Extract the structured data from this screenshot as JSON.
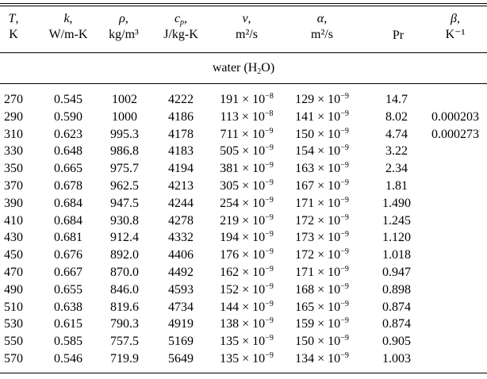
{
  "columns": [
    {
      "symbol": "T",
      "unit": "K"
    },
    {
      "symbol": "k",
      "unit": "W/m-K"
    },
    {
      "symbol": "ρ",
      "unit": "kg/m³"
    },
    {
      "symbol": "c",
      "symbol_sub": "p",
      "unit": "J/kg-K"
    },
    {
      "symbol": "ν",
      "unit": "m²/s"
    },
    {
      "symbol": "α",
      "unit": "m²/s"
    },
    {
      "symbol": "",
      "unit": "Pr"
    },
    {
      "symbol": "β",
      "unit": "K⁻¹"
    }
  ],
  "section": {
    "prefix": "water (H",
    "sub": "2",
    "suffix": "O)"
  },
  "rows": [
    {
      "T": "270",
      "k": "0.545",
      "rho": "1002",
      "cp": "4222",
      "nu_m": "191",
      "nu_e": "−8",
      "a_m": "129",
      "a_e": "−9",
      "Pr": "14.7",
      "beta": ""
    },
    {
      "T": "290",
      "k": "0.590",
      "rho": "1000",
      "cp": "4186",
      "nu_m": "113",
      "nu_e": "−8",
      "a_m": "141",
      "a_e": "−9",
      "Pr": "8.02",
      "beta": "0.000203"
    },
    {
      "T": "310",
      "k": "0.623",
      "rho": "995.3",
      "cp": "4178",
      "nu_m": "711",
      "nu_e": "−9",
      "a_m": "150",
      "a_e": "−9",
      "Pr": "4.74",
      "beta": "0.000273"
    },
    {
      "T": "330",
      "k": "0.648",
      "rho": "986.8",
      "cp": "4183",
      "nu_m": "505",
      "nu_e": "−9",
      "a_m": "154",
      "a_e": "−9",
      "Pr": "3.22",
      "beta": ""
    },
    {
      "T": "350",
      "k": "0.665",
      "rho": "975.7",
      "cp": "4194",
      "nu_m": "381",
      "nu_e": "−9",
      "a_m": "163",
      "a_e": "−9",
      "Pr": "2.34",
      "beta": ""
    },
    {
      "T": "370",
      "k": "0.678",
      "rho": "962.5",
      "cp": "4213",
      "nu_m": "305",
      "nu_e": "−9",
      "a_m": "167",
      "a_e": "−9",
      "Pr": "1.81",
      "beta": ""
    },
    {
      "T": "390",
      "k": "0.684",
      "rho": "947.5",
      "cp": "4244",
      "nu_m": "254",
      "nu_e": "−9",
      "a_m": "171",
      "a_e": "−9",
      "Pr": "1.490",
      "beta": ""
    },
    {
      "T": "410",
      "k": "0.684",
      "rho": "930.8",
      "cp": "4278",
      "nu_m": "219",
      "nu_e": "−9",
      "a_m": "172",
      "a_e": "−9",
      "Pr": "1.245",
      "beta": ""
    },
    {
      "T": "430",
      "k": "0.681",
      "rho": "912.4",
      "cp": "4332",
      "nu_m": "194",
      "nu_e": "−9",
      "a_m": "173",
      "a_e": "−9",
      "Pr": "1.120",
      "beta": ""
    },
    {
      "T": "450",
      "k": "0.676",
      "rho": "892.0",
      "cp": "4406",
      "nu_m": "176",
      "nu_e": "−9",
      "a_m": "172",
      "a_e": "−9",
      "Pr": "1.018",
      "beta": ""
    },
    {
      "T": "470",
      "k": "0.667",
      "rho": "870.0",
      "cp": "4492",
      "nu_m": "162",
      "nu_e": "−9",
      "a_m": "171",
      "a_e": "−9",
      "Pr": "0.947",
      "beta": ""
    },
    {
      "T": "490",
      "k": "0.655",
      "rho": "846.0",
      "cp": "4593",
      "nu_m": "152",
      "nu_e": "−9",
      "a_m": "168",
      "a_e": "−9",
      "Pr": "0.898",
      "beta": ""
    },
    {
      "T": "510",
      "k": "0.638",
      "rho": "819.6",
      "cp": "4734",
      "nu_m": "144",
      "nu_e": "−9",
      "a_m": "165",
      "a_e": "−9",
      "Pr": "0.874",
      "beta": ""
    },
    {
      "T": "530",
      "k": "0.615",
      "rho": "790.3",
      "cp": "4919",
      "nu_m": "138",
      "nu_e": "−9",
      "a_m": "159",
      "a_e": "−9",
      "Pr": "0.874",
      "beta": ""
    },
    {
      "T": "550",
      "k": "0.585",
      "rho": "757.5",
      "cp": "5169",
      "nu_m": "135",
      "nu_e": "−9",
      "a_m": "150",
      "a_e": "−9",
      "Pr": "0.905",
      "beta": ""
    },
    {
      "T": "570",
      "k": "0.546",
      "rho": "719.9",
      "cp": "5649",
      "nu_m": "135",
      "nu_e": "−9",
      "a_m": "134",
      "a_e": "−9",
      "Pr": "1.003",
      "beta": ""
    }
  ],
  "times": "×",
  "ten": "10"
}
